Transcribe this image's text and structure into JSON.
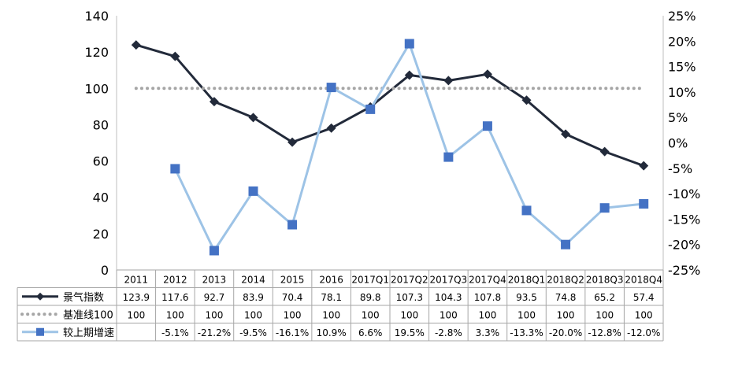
{
  "chart_data": {
    "type": "line",
    "categories": [
      "2011",
      "2012",
      "2013",
      "2014",
      "2015",
      "2016",
      "2017Q1",
      "2017Q2",
      "2017Q3",
      "2017Q4",
      "2018Q1",
      "2018Q2",
      "2018Q3",
      "2018Q4"
    ],
    "left_axis": {
      "ylim": [
        0,
        140
      ],
      "ticks": [
        "0",
        "20",
        "40",
        "60",
        "80",
        "100",
        "120",
        "140"
      ]
    },
    "right_axis": {
      "ylim": [
        -25,
        25
      ],
      "ticks": [
        "-25%",
        "-20%",
        "-15%",
        "-10%",
        "-5%",
        "0%",
        "5%",
        "10%",
        "15%",
        "20%",
        "25%"
      ]
    },
    "series": [
      {
        "name": "景气指数",
        "axis": "left",
        "color": "#222a3a",
        "marker": "diamond",
        "values": [
          123.9,
          117.6,
          92.7,
          83.9,
          70.4,
          78.1,
          89.8,
          107.3,
          104.3,
          107.8,
          93.5,
          74.8,
          65.2,
          57.4
        ],
        "labels": [
          "123.9",
          "117.6",
          "92.7",
          "83.9",
          "70.4",
          "78.1",
          "89.8",
          "107.3",
          "104.3",
          "107.8",
          "93.5",
          "74.8",
          "65.2",
          "57.4"
        ]
      },
      {
        "name": "基准线100",
        "axis": "left",
        "color": "#a6a6a6",
        "marker": "dotted",
        "values": [
          100,
          100,
          100,
          100,
          100,
          100,
          100,
          100,
          100,
          100,
          100,
          100,
          100,
          100
        ],
        "labels": [
          "100",
          "100",
          "100",
          "100",
          "100",
          "100",
          "100",
          "100",
          "100",
          "100",
          "100",
          "100",
          "100",
          "100"
        ]
      },
      {
        "name": "较上期增速",
        "axis": "right",
        "color": "#9dc3e6",
        "marker_color": "#4472c4",
        "marker": "square",
        "values": [
          null,
          -5.1,
          -21.2,
          -9.5,
          -16.1,
          10.9,
          6.6,
          19.5,
          -2.8,
          3.3,
          -13.3,
          -20.0,
          -12.8,
          -12.0
        ],
        "labels": [
          "",
          "-5.1%",
          "-21.2%",
          "-9.5%",
          "-16.1%",
          "10.9%",
          "6.6%",
          "19.5%",
          "-2.8%",
          "3.3%",
          "-13.3%",
          "-20.0%",
          "-12.8%",
          "-12.0%"
        ]
      }
    ],
    "legend_placement": "table-left",
    "grid": false
  }
}
